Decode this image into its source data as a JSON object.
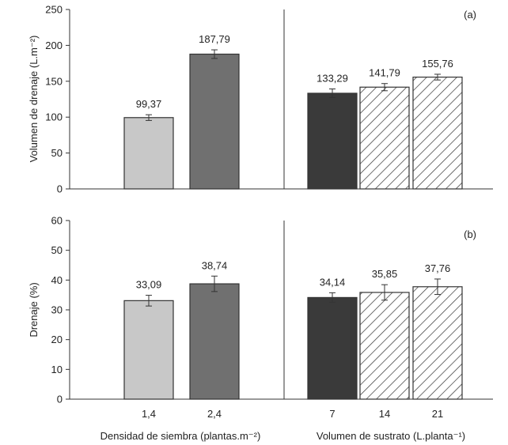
{
  "chart_data": [
    {
      "panel": "(a)",
      "type": "bar",
      "ylabel": "Volumen de drenaje (L.m⁻²)",
      "ylim": [
        0,
        250
      ],
      "yticks": [
        "0",
        "50",
        "100",
        "150",
        "200",
        "250"
      ],
      "groups": [
        {
          "xlabel": "Densidad de siembra (plantas.m⁻²)",
          "categories": [
            "1,4",
            "2,4"
          ],
          "values": [
            99.37,
            187.79
          ],
          "labels": [
            "99,37",
            "187,79"
          ],
          "errors": [
            4,
            6
          ],
          "fills": [
            "light-gray",
            "mid-gray"
          ]
        },
        {
          "xlabel": "Volumen de sustrato (L.planta⁻¹)",
          "categories": [
            "7",
            "14",
            "21"
          ],
          "values": [
            133.29,
            141.79,
            155.76
          ],
          "labels": [
            "133,29",
            "141,79",
            "155,76"
          ],
          "errors": [
            6,
            5,
            4
          ],
          "fills": [
            "dark-gray",
            "hatched",
            "hatched"
          ]
        }
      ]
    },
    {
      "panel": "(b)",
      "type": "bar",
      "ylabel": "Drenaje (%)",
      "ylim": [
        0,
        60
      ],
      "yticks": [
        "0",
        "10",
        "20",
        "30",
        "40",
        "50",
        "60"
      ],
      "groups": [
        {
          "xlabel": "Densidad de siembra (plantas.m⁻²)",
          "categories": [
            "1,4",
            "2,4"
          ],
          "values": [
            33.09,
            38.74
          ],
          "labels": [
            "33,09",
            "38,74"
          ],
          "errors": [
            1.8,
            2.6
          ],
          "fills": [
            "light-gray",
            "mid-gray"
          ]
        },
        {
          "xlabel": "Volumen de sustrato (L.planta⁻¹)",
          "categories": [
            "7",
            "14",
            "21"
          ],
          "values": [
            34.14,
            35.85,
            37.76
          ],
          "labels": [
            "34,14",
            "35,85",
            "37,76"
          ],
          "errors": [
            1.6,
            2.6,
            2.6
          ],
          "fills": [
            "dark-gray",
            "hatched",
            "hatched"
          ]
        }
      ]
    }
  ],
  "colors": {
    "light-gray": "#c8c8c8",
    "mid-gray": "#707070",
    "dark-gray": "#3a3a3a",
    "hatched": "#ffffff",
    "stroke": "#333333"
  }
}
